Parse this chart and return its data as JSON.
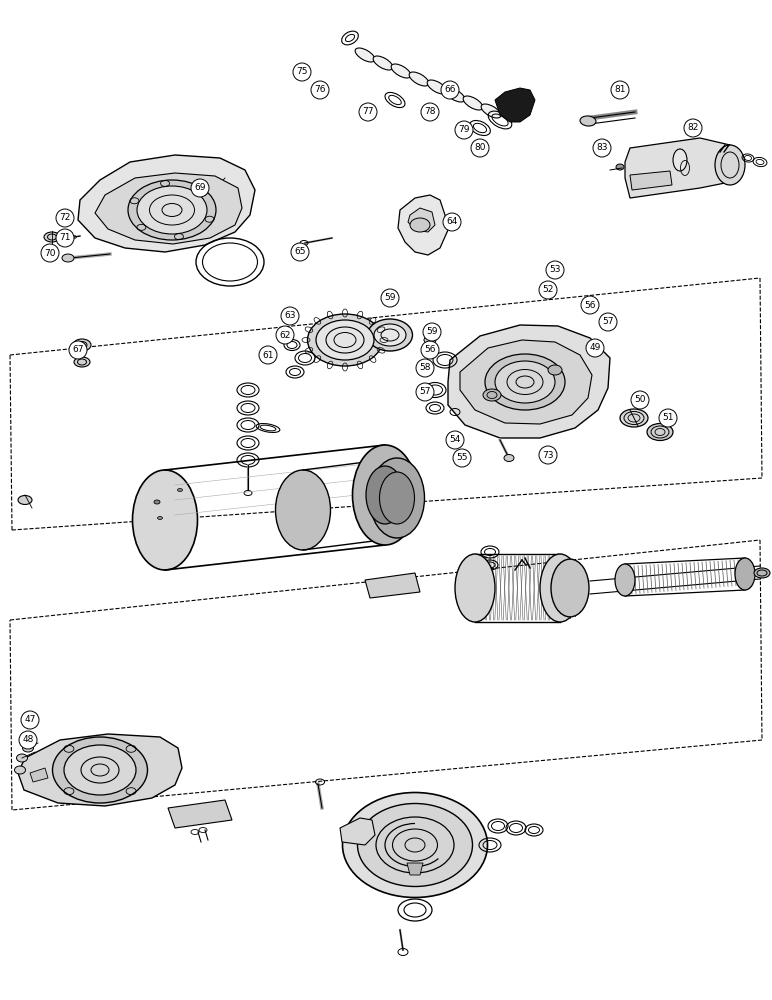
{
  "background_color": "#ffffff",
  "line_color": "#000000",
  "figsize": [
    7.72,
    10.0
  ],
  "dpi": 100
}
